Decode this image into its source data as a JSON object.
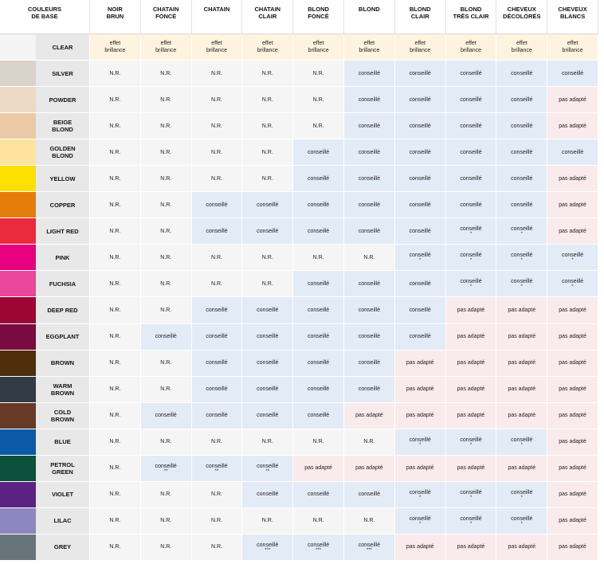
{
  "header": {
    "base_label": "COULEURS\nDE BASE",
    "columns": [
      "NOIR\nBRUN",
      "CHATAIN\nFONCÉ",
      "CHATAIN",
      "CHATAIN\nCLAIR",
      "BLOND\nFONCÉ",
      "BLOND",
      "BLOND\nCLAIR",
      "BLOND\nTRÈS CLAIR",
      "CHEVEUX\nDÉCOLORÉS",
      "CHEVEUX\nBLANCS"
    ]
  },
  "colors": {
    "nr_bg": "#f5f5f5",
    "conseille_bg": "#e3ebf7",
    "pas_adapte_bg": "#f9eaec",
    "effet_bg": "#fdf3df",
    "name_bg": "#e8e8e8"
  },
  "rows": [
    {
      "name": "CLEAR",
      "swatch": "#f4f4f4",
      "cells": [
        {
          "kind": "effet",
          "text": "effet\nbrillance"
        },
        {
          "kind": "effet",
          "text": "effet\nbrillance"
        },
        {
          "kind": "effet",
          "text": "effet\nbrillance"
        },
        {
          "kind": "effet",
          "text": "effet\nbrillance"
        },
        {
          "kind": "effet",
          "text": "effet\nbrillance"
        },
        {
          "kind": "effet",
          "text": "effet\nbrillance"
        },
        {
          "kind": "effet",
          "text": "effet\nbrillance"
        },
        {
          "kind": "effet",
          "text": "effet\nbrillance"
        },
        {
          "kind": "effet",
          "text": "effet\nbrillance"
        },
        {
          "kind": "effet",
          "text": "effet\nbrillance"
        }
      ]
    },
    {
      "name": "SILVER",
      "swatch": "#d9d3cc",
      "cells": [
        {
          "kind": "nr",
          "text": "N.R."
        },
        {
          "kind": "nr",
          "text": "N.R."
        },
        {
          "kind": "nr",
          "text": "N.R."
        },
        {
          "kind": "nr",
          "text": "N.R."
        },
        {
          "kind": "nr",
          "text": "N.R."
        },
        {
          "kind": "conseille",
          "text": "conseillé"
        },
        {
          "kind": "conseille",
          "text": "conseillé"
        },
        {
          "kind": "conseille",
          "text": "conseillé"
        },
        {
          "kind": "conseille",
          "text": "conseillé"
        },
        {
          "kind": "conseille",
          "text": "conseillé"
        }
      ]
    },
    {
      "name": "POWDER",
      "swatch": "#eed8c6",
      "cells": [
        {
          "kind": "nr",
          "text": "N.R."
        },
        {
          "kind": "nr",
          "text": "N.R."
        },
        {
          "kind": "nr",
          "text": "N.R."
        },
        {
          "kind": "nr",
          "text": "N.R."
        },
        {
          "kind": "nr",
          "text": "N.R."
        },
        {
          "kind": "conseille",
          "text": "conseillé"
        },
        {
          "kind": "conseille",
          "text": "conseillé"
        },
        {
          "kind": "conseille",
          "text": "conseillé"
        },
        {
          "kind": "conseille",
          "text": "conseillé"
        },
        {
          "kind": "pas",
          "text": "pas adapté"
        }
      ]
    },
    {
      "name": "BEIGE\nBLOND",
      "swatch": "#ecc9a6",
      "cells": [
        {
          "kind": "nr",
          "text": "N.R."
        },
        {
          "kind": "nr",
          "text": "N.R."
        },
        {
          "kind": "nr",
          "text": "N.R."
        },
        {
          "kind": "nr",
          "text": "N.R."
        },
        {
          "kind": "nr",
          "text": "N.R."
        },
        {
          "kind": "conseille",
          "text": "conseillé"
        },
        {
          "kind": "conseille",
          "text": "conseillé"
        },
        {
          "kind": "conseille",
          "text": "conseillé"
        },
        {
          "kind": "conseille",
          "text": "conseillé"
        },
        {
          "kind": "pas",
          "text": "pas adapté"
        }
      ]
    },
    {
      "name": "GOLDEN\nBLOND",
      "swatch": "#fde39e",
      "cells": [
        {
          "kind": "nr",
          "text": "N.R."
        },
        {
          "kind": "nr",
          "text": "N.R."
        },
        {
          "kind": "nr",
          "text": "N.R."
        },
        {
          "kind": "nr",
          "text": "N.R."
        },
        {
          "kind": "conseille",
          "text": "conseillé"
        },
        {
          "kind": "conseille",
          "text": "conseillé"
        },
        {
          "kind": "conseille",
          "text": "conseillé"
        },
        {
          "kind": "conseille",
          "text": "conseillé"
        },
        {
          "kind": "conseille",
          "text": "conseillé"
        },
        {
          "kind": "conseille",
          "text": "conseillé"
        }
      ]
    },
    {
      "name": "YELLOW",
      "swatch": "#fde000",
      "cells": [
        {
          "kind": "nr",
          "text": "N.R."
        },
        {
          "kind": "nr",
          "text": "N.R."
        },
        {
          "kind": "nr",
          "text": "N.R."
        },
        {
          "kind": "nr",
          "text": "N.R."
        },
        {
          "kind": "conseille",
          "text": "conseillé"
        },
        {
          "kind": "conseille",
          "text": "conseillé"
        },
        {
          "kind": "conseille",
          "text": "conseillé"
        },
        {
          "kind": "conseille",
          "text": "conseillé"
        },
        {
          "kind": "conseille",
          "text": "conseillé"
        },
        {
          "kind": "pas",
          "text": "pas adapté"
        }
      ]
    },
    {
      "name": "COPPER",
      "swatch": "#e57d0b",
      "cells": [
        {
          "kind": "nr",
          "text": "N.R."
        },
        {
          "kind": "nr",
          "text": "N.R."
        },
        {
          "kind": "conseille",
          "text": "conseillé"
        },
        {
          "kind": "conseille",
          "text": "conseillé"
        },
        {
          "kind": "conseille",
          "text": "conseillé"
        },
        {
          "kind": "conseille",
          "text": "conseillé"
        },
        {
          "kind": "conseille",
          "text": "conseillé"
        },
        {
          "kind": "conseille",
          "text": "conseillé"
        },
        {
          "kind": "conseille",
          "text": "conseillé"
        },
        {
          "kind": "pas",
          "text": "pas adapté"
        }
      ]
    },
    {
      "name": "LIGHT RED",
      "swatch": "#ea2b3d",
      "cells": [
        {
          "kind": "nr",
          "text": "N.R."
        },
        {
          "kind": "nr",
          "text": "N.R."
        },
        {
          "kind": "conseille",
          "text": "conseillé"
        },
        {
          "kind": "conseille",
          "text": "conseillé"
        },
        {
          "kind": "conseille",
          "text": "conseillé"
        },
        {
          "kind": "conseille",
          "text": "conseillé"
        },
        {
          "kind": "conseille",
          "text": "conseillé"
        },
        {
          "kind": "conseille",
          "text": "conseillé",
          "mark": "*"
        },
        {
          "kind": "conseille",
          "text": "conseillé",
          "mark": "*"
        },
        {
          "kind": "pas",
          "text": "pas adapté"
        }
      ]
    },
    {
      "name": "PINK",
      "swatch": "#e7007f",
      "cells": [
        {
          "kind": "nr",
          "text": "N.R."
        },
        {
          "kind": "nr",
          "text": "N.R."
        },
        {
          "kind": "nr",
          "text": "N.R."
        },
        {
          "kind": "nr",
          "text": "N.R."
        },
        {
          "kind": "nr",
          "text": "N.R."
        },
        {
          "kind": "nr",
          "text": "N.R."
        },
        {
          "kind": "conseille",
          "text": "conseillé",
          "mark": "*"
        },
        {
          "kind": "conseille",
          "text": "conseillé",
          "mark": "*"
        },
        {
          "kind": "conseille",
          "text": "conseillé",
          "mark": "*"
        },
        {
          "kind": "conseille",
          "text": "conseillé",
          "mark": "*"
        }
      ]
    },
    {
      "name": "FUCHSIA",
      "swatch": "#e8479a",
      "cells": [
        {
          "kind": "nr",
          "text": "N.R."
        },
        {
          "kind": "nr",
          "text": "N.R."
        },
        {
          "kind": "nr",
          "text": "N.R."
        },
        {
          "kind": "nr",
          "text": "N.R."
        },
        {
          "kind": "conseille",
          "text": "conseillé"
        },
        {
          "kind": "conseille",
          "text": "conseillé"
        },
        {
          "kind": "conseille",
          "text": "conseillé"
        },
        {
          "kind": "conseille",
          "text": "conseillé",
          "mark": "*"
        },
        {
          "kind": "conseille",
          "text": "conseillé",
          "mark": "*"
        },
        {
          "kind": "conseille",
          "text": "conseillé",
          "mark": "*"
        }
      ]
    },
    {
      "name": "DEEP RED",
      "swatch": "#9c0632",
      "cells": [
        {
          "kind": "nr",
          "text": "N.R."
        },
        {
          "kind": "nr",
          "text": "N.R."
        },
        {
          "kind": "conseille",
          "text": "conseillé"
        },
        {
          "kind": "conseille",
          "text": "conseillé"
        },
        {
          "kind": "conseille",
          "text": "conseillé"
        },
        {
          "kind": "conseille",
          "text": "conseillé"
        },
        {
          "kind": "conseille",
          "text": "conseillé"
        },
        {
          "kind": "pas",
          "text": "pas adapté"
        },
        {
          "kind": "pas",
          "text": "pas adapté"
        },
        {
          "kind": "pas",
          "text": "pas adapté"
        }
      ]
    },
    {
      "name": "EGGPLANT",
      "swatch": "#7a0a42",
      "cells": [
        {
          "kind": "nr",
          "text": "N.R."
        },
        {
          "kind": "conseille",
          "text": "conseillé"
        },
        {
          "kind": "conseille",
          "text": "conseillé"
        },
        {
          "kind": "conseille",
          "text": "conseillé"
        },
        {
          "kind": "conseille",
          "text": "conseillé"
        },
        {
          "kind": "conseille",
          "text": "conseillé"
        },
        {
          "kind": "conseille",
          "text": "conseillé"
        },
        {
          "kind": "pas",
          "text": "pas adapté"
        },
        {
          "kind": "pas",
          "text": "pas adapté"
        },
        {
          "kind": "pas",
          "text": "pas adapté"
        }
      ]
    },
    {
      "name": "BROWN",
      "swatch": "#4f2e0d",
      "cells": [
        {
          "kind": "nr",
          "text": "N.R."
        },
        {
          "kind": "nr",
          "text": "N.R."
        },
        {
          "kind": "conseille",
          "text": "conseillé"
        },
        {
          "kind": "conseille",
          "text": "conseillé"
        },
        {
          "kind": "conseille",
          "text": "conseillé"
        },
        {
          "kind": "conseille",
          "text": "conseillé"
        },
        {
          "kind": "pas",
          "text": "pas adapté"
        },
        {
          "kind": "pas",
          "text": "pas adapté"
        },
        {
          "kind": "pas",
          "text": "pas adapté"
        },
        {
          "kind": "pas",
          "text": "pas adapté"
        }
      ]
    },
    {
      "name": "WARM\nBROWN",
      "swatch": "#323a45",
      "cells": [
        {
          "kind": "nr",
          "text": "N.R."
        },
        {
          "kind": "nr",
          "text": "N.R."
        },
        {
          "kind": "conseille",
          "text": "conseillé"
        },
        {
          "kind": "conseille",
          "text": "conseillé"
        },
        {
          "kind": "conseille",
          "text": "conseillé"
        },
        {
          "kind": "conseille",
          "text": "conseillé"
        },
        {
          "kind": "pas",
          "text": "pas adapté"
        },
        {
          "kind": "pas",
          "text": "pas adapté"
        },
        {
          "kind": "pas",
          "text": "pas adapté"
        },
        {
          "kind": "pas",
          "text": "pas adapté"
        }
      ]
    },
    {
      "name": "COLD\nBROWN",
      "swatch": "#683a26",
      "cells": [
        {
          "kind": "nr",
          "text": "N.R."
        },
        {
          "kind": "conseille",
          "text": "conseillé"
        },
        {
          "kind": "conseille",
          "text": "conseillé"
        },
        {
          "kind": "conseille",
          "text": "conseillé"
        },
        {
          "kind": "conseille",
          "text": "conseillé"
        },
        {
          "kind": "pas",
          "text": "pas adapté"
        },
        {
          "kind": "pas",
          "text": "pas adapté"
        },
        {
          "kind": "pas",
          "text": "pas adapté"
        },
        {
          "kind": "pas",
          "text": "pas adapté"
        },
        {
          "kind": "pas",
          "text": "pas adapté"
        }
      ]
    },
    {
      "name": "BLUE",
      "swatch": "#0b5aa8",
      "cells": [
        {
          "kind": "nr",
          "text": "N.R."
        },
        {
          "kind": "nr",
          "text": "N.R."
        },
        {
          "kind": "nr",
          "text": "N.R."
        },
        {
          "kind": "nr",
          "text": "N.R."
        },
        {
          "kind": "nr",
          "text": "N.R."
        },
        {
          "kind": "nr",
          "text": "N.R."
        },
        {
          "kind": "conseille",
          "text": "conseillé",
          "mark": "*"
        },
        {
          "kind": "conseille",
          "text": "conseillé",
          "mark": "*"
        },
        {
          "kind": "conseille",
          "text": "conseillé",
          "mark": "*"
        },
        {
          "kind": "pas",
          "text": "pas adapté"
        }
      ]
    },
    {
      "name": "PETROL\nGREEN",
      "swatch": "#0a503a",
      "cells": [
        {
          "kind": "nr",
          "text": "N.R."
        },
        {
          "kind": "conseille",
          "text": "conseillé",
          "mark": "**"
        },
        {
          "kind": "conseille",
          "text": "conseillé",
          "mark": "**"
        },
        {
          "kind": "conseille",
          "text": "conseillé",
          "mark": "**"
        },
        {
          "kind": "pas",
          "text": "pas adapté"
        },
        {
          "kind": "pas",
          "text": "pas adapté"
        },
        {
          "kind": "pas",
          "text": "pas adapté"
        },
        {
          "kind": "pas",
          "text": "pas adapté"
        },
        {
          "kind": "pas",
          "text": "pas adapté"
        },
        {
          "kind": "pas",
          "text": "pas adapté"
        }
      ]
    },
    {
      "name": "VIOLET",
      "swatch": "#5b2283",
      "cells": [
        {
          "kind": "nr",
          "text": "N.R."
        },
        {
          "kind": "nr",
          "text": "N.R."
        },
        {
          "kind": "nr",
          "text": "N.R."
        },
        {
          "kind": "conseille",
          "text": "conseillé"
        },
        {
          "kind": "conseille",
          "text": "conseillé"
        },
        {
          "kind": "conseille",
          "text": "conseillé"
        },
        {
          "kind": "conseille",
          "text": "conseillé",
          "mark": "*"
        },
        {
          "kind": "conseille",
          "text": "conseillé",
          "mark": "*"
        },
        {
          "kind": "conseille",
          "text": "conseillé",
          "mark": "*"
        },
        {
          "kind": "pas",
          "text": "pas adapté"
        }
      ]
    },
    {
      "name": "LILAC",
      "swatch": "#8d86c0",
      "cells": [
        {
          "kind": "nr",
          "text": "N.R."
        },
        {
          "kind": "nr",
          "text": "N.R."
        },
        {
          "kind": "nr",
          "text": "N.R."
        },
        {
          "kind": "nr",
          "text": "N.R."
        },
        {
          "kind": "nr",
          "text": "N.R."
        },
        {
          "kind": "nr",
          "text": "N.R."
        },
        {
          "kind": "conseille",
          "text": "conseillé",
          "mark": "*"
        },
        {
          "kind": "conseille",
          "text": "conseillé",
          "mark": "*"
        },
        {
          "kind": "conseille",
          "text": "conseillé",
          "mark": "*"
        },
        {
          "kind": "pas",
          "text": "pas adapté"
        }
      ]
    },
    {
      "name": "GREY",
      "swatch": "#67757b",
      "cells": [
        {
          "kind": "nr",
          "text": "N.R."
        },
        {
          "kind": "nr",
          "text": "N.R."
        },
        {
          "kind": "nr",
          "text": "N.R."
        },
        {
          "kind": "conseille",
          "text": "conseillé",
          "mark": "***"
        },
        {
          "kind": "conseille",
          "text": "conseillé",
          "mark": "***"
        },
        {
          "kind": "conseille",
          "text": "conseillé",
          "mark": "***"
        },
        {
          "kind": "pas",
          "text": "pas adapté"
        },
        {
          "kind": "pas",
          "text": "pas adapté"
        },
        {
          "kind": "pas",
          "text": "pas adapté"
        },
        {
          "kind": "pas",
          "text": "pas adapté"
        }
      ]
    }
  ]
}
